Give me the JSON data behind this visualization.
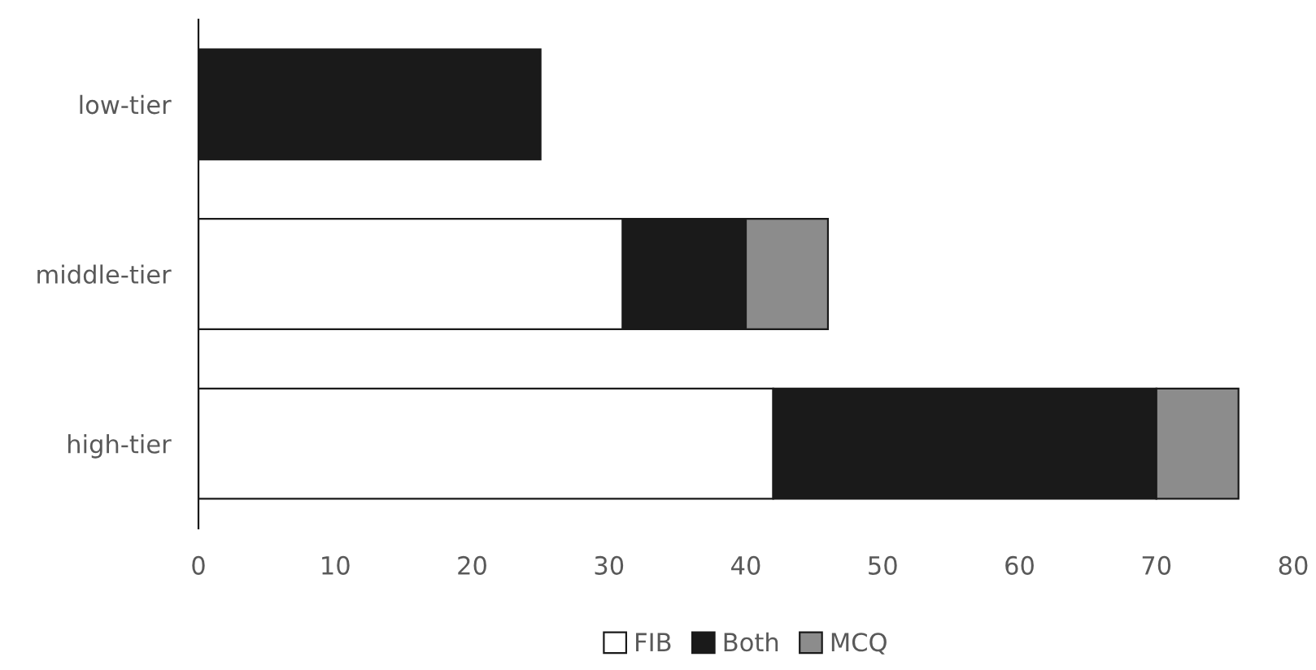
{
  "chart_data": {
    "type": "bar",
    "orientation": "horizontal",
    "stacked": true,
    "categories": [
      "low-tier",
      "middle-tier",
      "high-tier"
    ],
    "series": [
      {
        "name": "FIB",
        "color": "#ffffff",
        "values": [
          0,
          31,
          42
        ]
      },
      {
        "name": "Both",
        "color": "#1a1a1a",
        "values": [
          25,
          9,
          28
        ]
      },
      {
        "name": "MCQ",
        "color": "#8c8c8c",
        "values": [
          0,
          6,
          6
        ]
      }
    ],
    "xlim": [
      0,
      80
    ],
    "xticks": [
      0,
      10,
      20,
      30,
      40,
      50,
      60,
      70,
      80
    ],
    "grid": false,
    "legend": "bottom"
  }
}
